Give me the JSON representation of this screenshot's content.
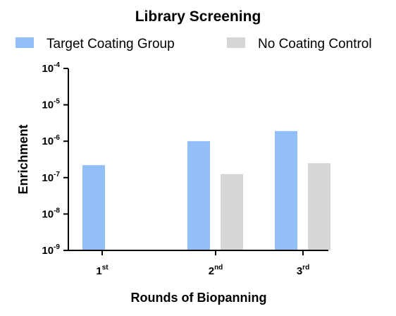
{
  "chart_data": {
    "type": "bar",
    "title": "Library Screening",
    "xlabel": "Rounds of Biopanning",
    "ylabel": "Enrichment",
    "yscale": "log",
    "ylim": [
      1e-09,
      0.0001
    ],
    "grid": false,
    "legend_position": "top",
    "categories": [
      {
        "base": "1",
        "sup": "st"
      },
      {
        "base": "2",
        "sup": "nd"
      },
      {
        "base": "3",
        "sup": "rd"
      }
    ],
    "y_ticks": [
      {
        "value": 0.0001,
        "base": "10",
        "exp": "-4"
      },
      {
        "value": 1e-05,
        "base": "10",
        "exp": "-5"
      },
      {
        "value": 1e-06,
        "base": "10",
        "exp": "-6"
      },
      {
        "value": 1e-07,
        "base": "10",
        "exp": "-7"
      },
      {
        "value": 1e-08,
        "base": "10",
        "exp": "-8"
      },
      {
        "value": 1e-09,
        "base": "10",
        "exp": "-9"
      }
    ],
    "series": [
      {
        "name": "Target Coating Group",
        "color": "#93bff9",
        "values": [
          2.2e-07,
          1e-06,
          1.9e-06
        ]
      },
      {
        "name": "No Coating Control",
        "color": "#d6d6d6",
        "values": [
          null,
          1.25e-07,
          2.5e-07
        ]
      }
    ]
  }
}
